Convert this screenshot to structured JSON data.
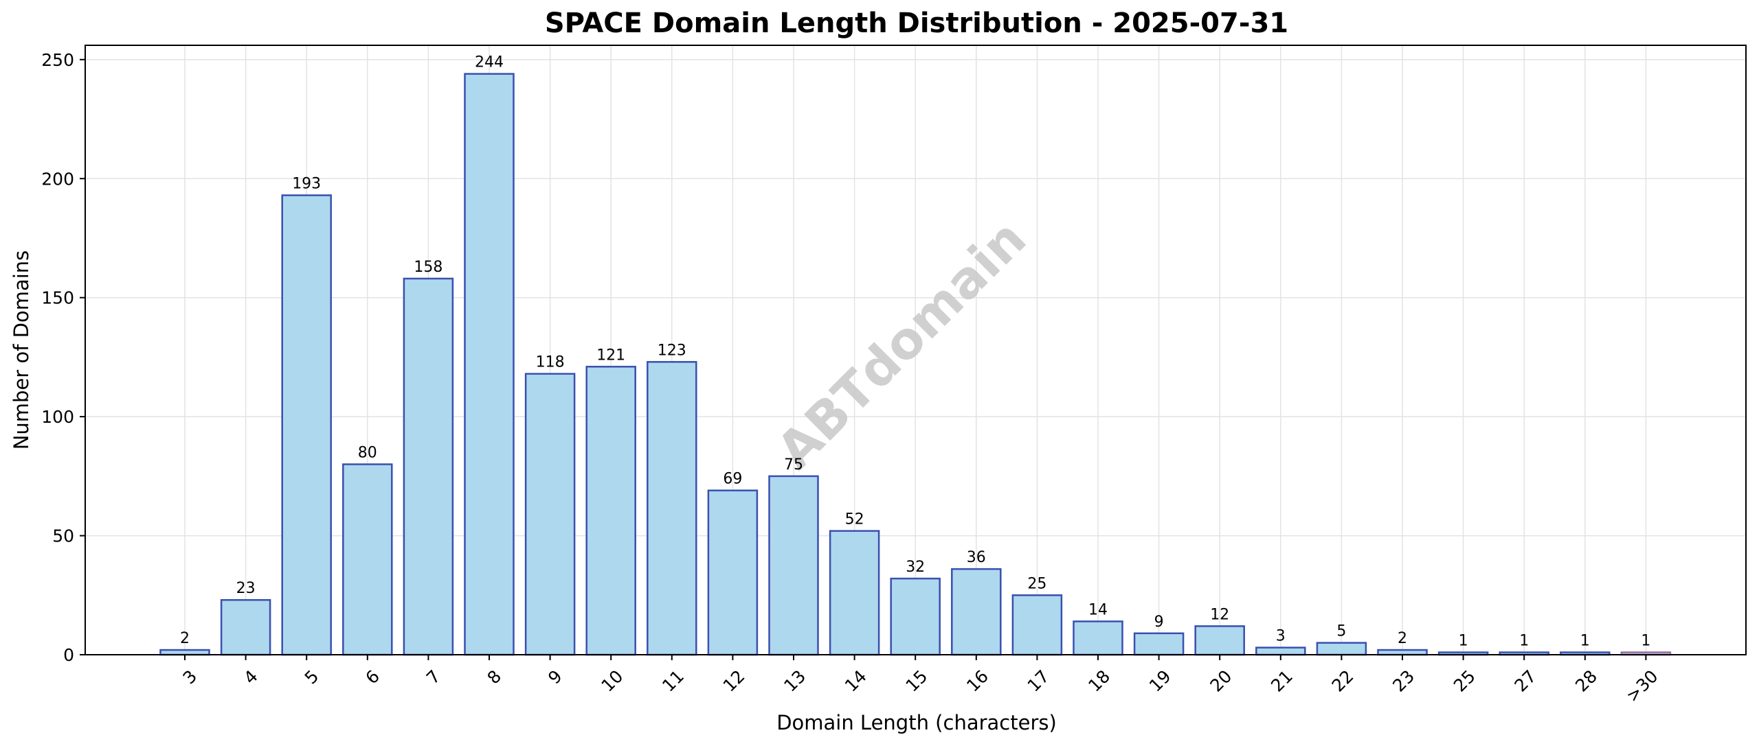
{
  "chart_data": {
    "type": "bar",
    "title": "SPACE Domain Length Distribution - 2025-07-31",
    "xlabel": "Domain Length (characters)",
    "ylabel": "Number of Domains",
    "categories": [
      "3",
      "4",
      "5",
      "6",
      "7",
      "8",
      "9",
      "10",
      "11",
      "12",
      "13",
      "14",
      "15",
      "16",
      "17",
      "18",
      "19",
      "20",
      "21",
      "22",
      "23",
      "25",
      "27",
      "28",
      ">30"
    ],
    "values": [
      2,
      23,
      193,
      80,
      158,
      244,
      118,
      121,
      123,
      69,
      75,
      52,
      32,
      36,
      25,
      14,
      9,
      12,
      3,
      5,
      2,
      1,
      1,
      1,
      1
    ],
    "ylim": [
      0,
      256
    ],
    "yticks": [
      0,
      50,
      100,
      150,
      200,
      250
    ],
    "grid": true,
    "watermark": "ABTdomain",
    "colors": {
      "bar_fill": "#add8ee",
      "bar_edge": "#3a4fb0",
      "last_bar_edge": "#a06a9a",
      "grid": "#e3e3e3",
      "text": "#000000",
      "watermark": "#c8c8c8"
    }
  }
}
